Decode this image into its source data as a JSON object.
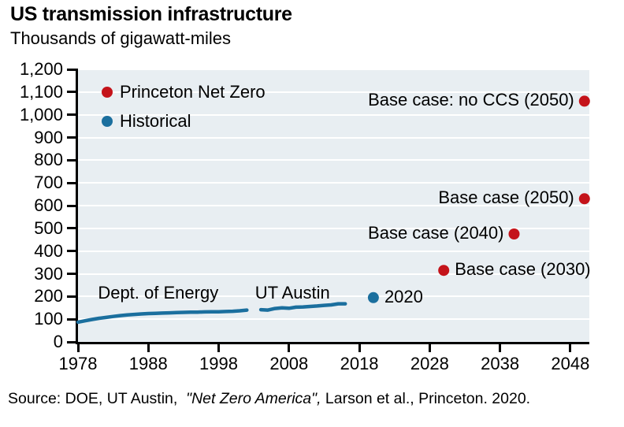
{
  "header": {
    "title": "US transmission infrastructure",
    "subtitle": "Thousands of gigawatt-miles"
  },
  "colors": {
    "princeton_red": "#c4131a",
    "historical_blue": "#1b6f9e",
    "plot_background": "#e8eef2",
    "gridline": "#ffffff",
    "axis": "#000000"
  },
  "legend": [
    {
      "label": "Princeton Net Zero",
      "color": "#c4131a",
      "marker": "dot"
    },
    {
      "label": "Historical",
      "color": "#1b6f9e",
      "marker": "dot"
    }
  ],
  "chart_data": {
    "type": "line",
    "title": "US transmission infrastructure",
    "unit_label": "Thousands of gigawatt-miles",
    "xlim": [
      1978,
      2050.7
    ],
    "ylim": [
      0,
      1200
    ],
    "x_ticks": [
      1978,
      1988,
      1998,
      2008,
      2018,
      2028,
      2038,
      2048
    ],
    "y_tick_step": 100,
    "grid": "horizontal white gridlines",
    "legend_position": "top-left inside plot",
    "series": [
      {
        "name": "Historical transmission (Dept. of Energy)",
        "type": "line",
        "color": "#1b6f9e",
        "label": {
          "text": "Dept. of Energy",
          "x": 1989.4,
          "y": 215
        },
        "points": [
          [
            1978,
            87
          ],
          [
            1979,
            93
          ],
          [
            1980,
            99
          ],
          [
            1981,
            104
          ],
          [
            1982,
            108
          ],
          [
            1983,
            112
          ],
          [
            1984,
            116
          ],
          [
            1985,
            119
          ],
          [
            1986,
            121
          ],
          [
            1987,
            123
          ],
          [
            1988,
            125
          ],
          [
            1989,
            126
          ],
          [
            1990,
            127
          ],
          [
            1991,
            128
          ],
          [
            1992,
            129
          ],
          [
            1993,
            130
          ],
          [
            1994,
            131
          ],
          [
            1995,
            131
          ],
          [
            1996,
            132
          ],
          [
            1997,
            133
          ],
          [
            1998,
            133
          ],
          [
            1999,
            134
          ],
          [
            2000,
            135
          ],
          [
            2001,
            137
          ],
          [
            2002,
            140
          ]
        ]
      },
      {
        "name": "Historical transmission (UT Austin)",
        "type": "line",
        "color": "#1b6f9e",
        "label": {
          "text": "UT Austin",
          "x": 2008.5,
          "y": 215
        },
        "points": [
          [
            2004,
            142
          ],
          [
            2005,
            140
          ],
          [
            2006,
            147
          ],
          [
            2007,
            150
          ],
          [
            2008,
            148
          ],
          [
            2009,
            153
          ],
          [
            2010,
            154
          ],
          [
            2011,
            156
          ],
          [
            2012,
            158
          ],
          [
            2013,
            161
          ],
          [
            2014,
            163
          ],
          [
            2015,
            168
          ],
          [
            2016,
            168
          ]
        ]
      },
      {
        "name": "Historical 2020 estimate",
        "type": "scatter",
        "color": "#1b6f9e",
        "points": [
          {
            "x": 2020,
            "y": 195,
            "label": "2020",
            "label_side": "right"
          }
        ]
      },
      {
        "name": "Princeton Net Zero scenarios",
        "type": "scatter",
        "color": "#c4131a",
        "points": [
          {
            "x": 2030,
            "y": 315,
            "label": "Base case (2030)",
            "label_side": "right"
          },
          {
            "x": 2040,
            "y": 475,
            "label": "Base case (2040)",
            "label_side": "left"
          },
          {
            "x": 2050,
            "y": 630,
            "label": "Base case (2050)",
            "label_side": "left"
          },
          {
            "x": 2050,
            "y": 1060,
            "label": "Base case: no CCS (2050)",
            "label_side": "left"
          }
        ]
      }
    ]
  },
  "source": {
    "prefix": "Source: DOE, UT Austin,  ",
    "italic": "\"Net Zero America\",",
    "suffix": " Larson et al., Princeton. 2020."
  }
}
